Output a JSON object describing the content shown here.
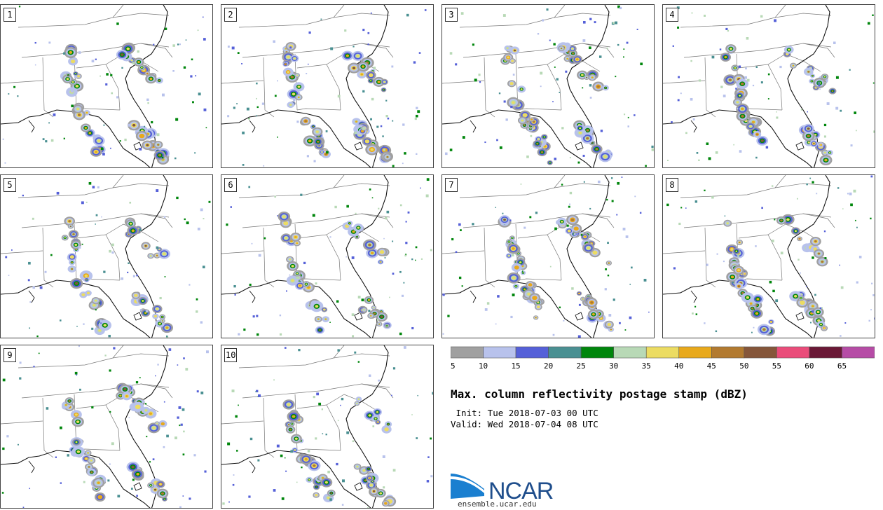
{
  "panels": [
    {
      "label": "1",
      "seed": 11
    },
    {
      "label": "2",
      "seed": 23
    },
    {
      "label": "3",
      "seed": 37
    },
    {
      "label": "4",
      "seed": 41
    },
    {
      "label": "5",
      "seed": 53
    },
    {
      "label": "6",
      "seed": 67
    },
    {
      "label": "7",
      "seed": 71
    },
    {
      "label": "8",
      "seed": 89
    },
    {
      "label": "9",
      "seed": 97
    },
    {
      "label": "10",
      "seed": 103
    }
  ],
  "colorbar": {
    "bins": [
      {
        "from": 5,
        "to": 10,
        "color": "#a0a0a0"
      },
      {
        "from": 10,
        "to": 15,
        "color": "#b8c2ec"
      },
      {
        "from": 15,
        "to": 20,
        "color": "#5560d8"
      },
      {
        "from": 20,
        "to": 25,
        "color": "#4a9092"
      },
      {
        "from": 25,
        "to": 30,
        "color": "#00860c"
      },
      {
        "from": 30,
        "to": 35,
        "color": "#b8d9b6"
      },
      {
        "from": 35,
        "to": 40,
        "color": "#ecdc62"
      },
      {
        "from": 40,
        "to": 45,
        "color": "#e8a91c"
      },
      {
        "from": 45,
        "to": 50,
        "color": "#b27a30"
      },
      {
        "from": 50,
        "to": 55,
        "color": "#85563a"
      },
      {
        "from": 55,
        "to": 60,
        "color": "#ea4c7a"
      },
      {
        "from": 60,
        "to": 65,
        "color": "#6a1836"
      },
      {
        "from": 65,
        "to": 70,
        "color": "#b64ca6"
      }
    ],
    "tick_labels": [
      "5",
      "10",
      "15",
      "20",
      "25",
      "30",
      "35",
      "40",
      "45",
      "50",
      "55",
      "60",
      "65"
    ]
  },
  "title": "Max. column reflectivity postage stamp (dBZ)",
  "init": " Init: Tue 2018-07-03 00 UTC",
  "valid": "Valid: Wed 2018-07-04 08 UTC",
  "logo": {
    "text": "NCAR",
    "url_text": "ensemble.ucar.edu",
    "blue": "#1f4e8c",
    "swoosh": "#1a7fd0"
  }
}
